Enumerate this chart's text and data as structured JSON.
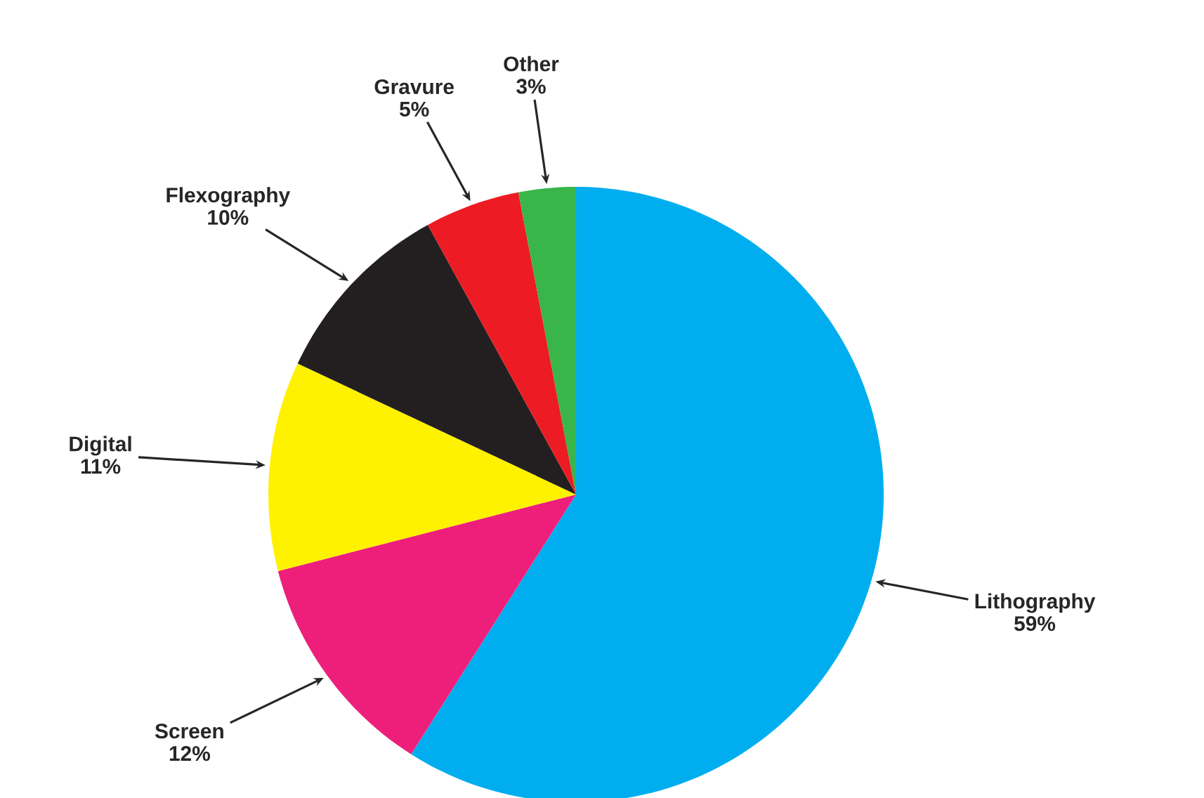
{
  "chart_data": {
    "type": "pie",
    "categories": [
      "Lithography",
      "Screen",
      "Digital",
      "Flexography",
      "Gravure",
      "Other"
    ],
    "values": [
      59,
      12,
      11,
      10,
      5,
      3
    ],
    "colors": [
      "#00aeef",
      "#ed1f7b",
      "#fff200",
      "#231f20",
      "#ed1c24",
      "#39b54a"
    ],
    "value_labels": [
      "59%",
      "12%",
      "11%",
      "10%",
      "5%",
      "3%"
    ]
  }
}
